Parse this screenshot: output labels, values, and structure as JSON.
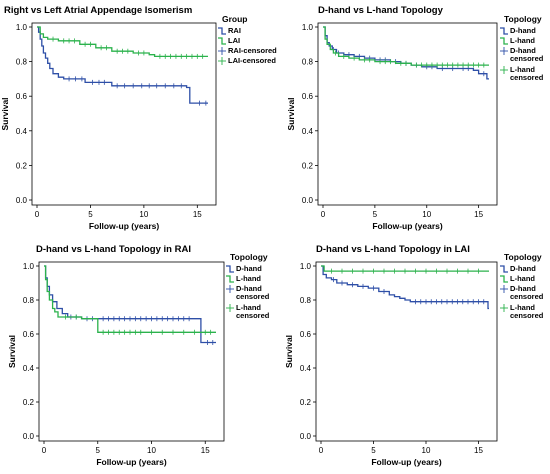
{
  "colors": {
    "series1": "#2E4FA7",
    "series2": "#2BB24C",
    "axis": "#000000",
    "background": "#ffffff"
  },
  "chart_data": [
    {
      "type": "line",
      "subtype": "kaplan-meier",
      "title": "Right vs Left Atrial Appendage Isomerism",
      "xlabel": "Follow-up (years)",
      "ylabel": "Survival",
      "xlim": [
        0,
        16
      ],
      "ylim": [
        0,
        1.0
      ],
      "xticks": [
        0,
        5,
        10,
        15
      ],
      "yticks": [
        "0.0",
        "0.2",
        "0.4",
        "0.6",
        "0.8",
        "1.0"
      ],
      "grid": false,
      "legend_title": "Group",
      "legend_position": "right",
      "legend": [
        "RAI",
        "LAI",
        "RAI-censored",
        "LAI-censored"
      ],
      "series": [
        {
          "name": "RAI",
          "color": "#2E4FA7",
          "steps": [
            [
              0,
              1.0
            ],
            [
              0.15,
              0.97
            ],
            [
              0.3,
              0.93
            ],
            [
              0.45,
              0.89
            ],
            [
              0.6,
              0.85
            ],
            [
              0.8,
              0.82
            ],
            [
              1.0,
              0.79
            ],
            [
              1.2,
              0.76
            ],
            [
              1.5,
              0.73
            ],
            [
              2.0,
              0.71
            ],
            [
              2.5,
              0.7
            ],
            [
              4.5,
              0.68
            ],
            [
              7.0,
              0.66
            ],
            [
              14.0,
              0.65
            ],
            [
              14.3,
              0.56
            ],
            [
              16.0,
              0.56
            ]
          ],
          "censored": [
            3.0,
            3.6,
            4.2,
            5.2,
            5.8,
            6.3,
            7.5,
            8.2,
            9.0,
            9.8,
            10.5,
            11.2,
            12.0,
            12.8,
            13.5,
            15.2,
            15.8
          ]
        },
        {
          "name": "LAI",
          "color": "#2BB24C",
          "steps": [
            [
              0,
              1.0
            ],
            [
              0.3,
              0.96
            ],
            [
              0.6,
              0.94
            ],
            [
              1.0,
              0.93
            ],
            [
              2.0,
              0.92
            ],
            [
              4.0,
              0.9
            ],
            [
              5.5,
              0.88
            ],
            [
              7.0,
              0.86
            ],
            [
              9.0,
              0.85
            ],
            [
              10.5,
              0.84
            ],
            [
              11.0,
              0.83
            ],
            [
              16.0,
              0.83
            ]
          ],
          "censored": [
            1.5,
            2.5,
            3.0,
            3.5,
            4.5,
            5.0,
            6.0,
            6.5,
            7.5,
            8.0,
            8.5,
            9.5,
            10.0,
            11.5,
            12.0,
            12.5,
            13.0,
            13.5,
            14.0,
            14.5,
            15.0,
            15.5
          ]
        }
      ]
    },
    {
      "type": "line",
      "subtype": "kaplan-meier",
      "title": "D-hand vs L-hand Topology",
      "xlabel": "Follow-up (years)",
      "ylabel": "Survival",
      "xlim": [
        0,
        16
      ],
      "ylim": [
        0,
        1.0
      ],
      "xticks": [
        0,
        5,
        10,
        15
      ],
      "yticks": [
        "0.0",
        "0.2",
        "0.4",
        "0.6",
        "0.8",
        "1.0"
      ],
      "grid": false,
      "legend_title": "Topology",
      "legend_position": "right",
      "legend": [
        "D-hand",
        "L-hand",
        "D-hand censored",
        "L-hand censored"
      ],
      "series": [
        {
          "name": "D-hand",
          "color": "#2E4FA7",
          "steps": [
            [
              0,
              1.0
            ],
            [
              0.2,
              0.95
            ],
            [
              0.4,
              0.91
            ],
            [
              0.6,
              0.89
            ],
            [
              0.9,
              0.87
            ],
            [
              1.3,
              0.85
            ],
            [
              2.0,
              0.84
            ],
            [
              3.0,
              0.83
            ],
            [
              4.0,
              0.82
            ],
            [
              5.0,
              0.81
            ],
            [
              6.5,
              0.8
            ],
            [
              7.5,
              0.79
            ],
            [
              8.5,
              0.78
            ],
            [
              9.5,
              0.77
            ],
            [
              11.0,
              0.76
            ],
            [
              14.5,
              0.75
            ],
            [
              15.0,
              0.73
            ],
            [
              15.8,
              0.7
            ],
            [
              16.0,
              0.7
            ]
          ],
          "censored": [
            1.0,
            1.5,
            2.5,
            3.5,
            4.5,
            5.5,
            6.0,
            7.0,
            8.0,
            9.0,
            10.0,
            10.5,
            11.5,
            12.5,
            13.5,
            14.0,
            15.5
          ]
        },
        {
          "name": "L-hand",
          "color": "#2BB24C",
          "steps": [
            [
              0,
              1.0
            ],
            [
              0.2,
              0.93
            ],
            [
              0.4,
              0.9
            ],
            [
              0.7,
              0.87
            ],
            [
              1.0,
              0.85
            ],
            [
              1.5,
              0.83
            ],
            [
              2.5,
              0.82
            ],
            [
              3.5,
              0.81
            ],
            [
              5.0,
              0.8
            ],
            [
              7.0,
              0.79
            ],
            [
              8.5,
              0.78
            ],
            [
              16.0,
              0.78
            ]
          ],
          "censored": [
            1.2,
            2.0,
            3.0,
            4.0,
            4.5,
            5.5,
            6.0,
            6.5,
            7.5,
            8.0,
            9.0,
            9.5,
            10.0,
            10.5,
            11.0,
            11.5,
            12.0,
            12.5,
            13.0,
            13.5,
            14.0,
            14.5,
            15.0,
            15.5
          ]
        }
      ]
    },
    {
      "type": "line",
      "subtype": "kaplan-meier",
      "title": "D-hand vs L-hand Topology in RAI",
      "xlabel": "Follow-up (years)",
      "ylabel": "Survival",
      "xlim": [
        0,
        16
      ],
      "ylim": [
        0,
        1.0
      ],
      "xticks": [
        0,
        5,
        10,
        15
      ],
      "yticks": [
        "0.0",
        "0.2",
        "0.4",
        "0.6",
        "0.8",
        "1.0"
      ],
      "grid": false,
      "legend_title": "Topology",
      "legend_position": "right",
      "legend": [
        "D-hand",
        "L-hand",
        "D-hand censored",
        "L-hand censored"
      ],
      "series": [
        {
          "name": "D-hand",
          "color": "#2E4FA7",
          "steps": [
            [
              0,
              1.0
            ],
            [
              0.15,
              0.93
            ],
            [
              0.3,
              0.88
            ],
            [
              0.5,
              0.83
            ],
            [
              0.8,
              0.79
            ],
            [
              1.2,
              0.75
            ],
            [
              1.7,
              0.72
            ],
            [
              2.2,
              0.7
            ],
            [
              3.5,
              0.69
            ],
            [
              14.5,
              0.69
            ],
            [
              14.6,
              0.55
            ],
            [
              16.0,
              0.55
            ]
          ],
          "censored": [
            2.5,
            3.0,
            4.0,
            4.5,
            5.5,
            6.0,
            6.5,
            7.0,
            7.5,
            8.0,
            8.5,
            9.0,
            9.5,
            10.0,
            10.5,
            11.0,
            11.5,
            12.0,
            12.5,
            13.0,
            13.5,
            15.2,
            15.7
          ]
        },
        {
          "name": "L-hand",
          "color": "#2BB24C",
          "steps": [
            [
              0,
              1.0
            ],
            [
              0.15,
              0.92
            ],
            [
              0.3,
              0.85
            ],
            [
              0.5,
              0.8
            ],
            [
              0.8,
              0.75
            ],
            [
              1.0,
              0.73
            ],
            [
              1.3,
              0.7
            ],
            [
              3.5,
              0.69
            ],
            [
              5.0,
              0.61
            ],
            [
              16.0,
              0.61
            ]
          ],
          "censored": [
            2.0,
            3.0,
            5.5,
            6.0,
            6.5,
            7.0,
            7.5,
            8.0,
            8.5,
            9.0,
            10.0,
            11.0,
            12.0,
            13.0,
            14.0,
            15.0,
            15.5
          ]
        }
      ]
    },
    {
      "type": "line",
      "subtype": "kaplan-meier",
      "title": "D-hand vs L-hand Topology in LAI",
      "xlabel": "Follow-up (years)",
      "ylabel": "Survival",
      "xlim": [
        0,
        16
      ],
      "ylim": [
        0,
        1.0
      ],
      "xticks": [
        0,
        5,
        10,
        15
      ],
      "yticks": [
        "0.0",
        "0.2",
        "0.4",
        "0.6",
        "0.8",
        "1.0"
      ],
      "grid": false,
      "legend_title": "Topology",
      "legend_position": "right",
      "legend": [
        "D-hand",
        "L-hand",
        "D-hand censored",
        "L-hand censored"
      ],
      "series": [
        {
          "name": "D-hand",
          "color": "#2E4FA7",
          "steps": [
            [
              0,
              1.0
            ],
            [
              0.2,
              0.95
            ],
            [
              0.5,
              0.93
            ],
            [
              1.0,
              0.92
            ],
            [
              1.5,
              0.9
            ],
            [
              2.5,
              0.89
            ],
            [
              3.5,
              0.88
            ],
            [
              4.5,
              0.87
            ],
            [
              5.5,
              0.85
            ],
            [
              6.5,
              0.83
            ],
            [
              7.0,
              0.82
            ],
            [
              7.5,
              0.81
            ],
            [
              8.0,
              0.8
            ],
            [
              8.5,
              0.79
            ],
            [
              15.8,
              0.79
            ],
            [
              15.9,
              0.75
            ],
            [
              16.0,
              0.75
            ]
          ],
          "censored": [
            1.2,
            2.0,
            3.0,
            4.0,
            5.0,
            6.0,
            9.0,
            9.5,
            10.0,
            10.5,
            11.0,
            11.5,
            12.0,
            12.5,
            13.0,
            13.5,
            14.0,
            14.5,
            15.0,
            15.5
          ]
        },
        {
          "name": "L-hand",
          "color": "#2BB24C",
          "steps": [
            [
              0,
              1.0
            ],
            [
              0.3,
              0.97
            ],
            [
              16.0,
              0.97
            ]
          ],
          "censored": [
            1.0,
            2.0,
            3.0,
            4.0,
            5.0,
            6.0,
            7.0,
            8.0,
            9.0,
            10.0,
            11.0,
            12.0,
            13.0,
            14.0,
            15.0
          ]
        }
      ]
    }
  ]
}
